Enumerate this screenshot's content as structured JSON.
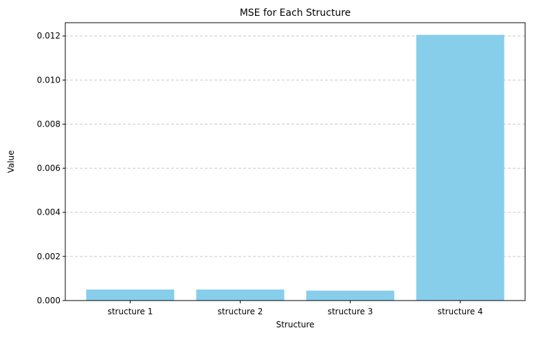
{
  "chart_data": {
    "type": "bar",
    "title": "MSE for Each Structure",
    "xlabel": "Structure",
    "ylabel": "Value",
    "categories": [
      "structure 1",
      "structure 2",
      "structure 3",
      "structure 4"
    ],
    "values": [
      0.0005,
      0.0005,
      0.00045,
      0.01205
    ],
    "ylim": [
      0,
      0.0126
    ],
    "yticks": [
      0.0,
      0.002,
      0.004,
      0.006,
      0.008,
      0.01,
      0.012
    ],
    "ytick_labels": [
      "0.000",
      "0.002",
      "0.004",
      "0.006",
      "0.008",
      "0.010",
      "0.012"
    ],
    "grid": "y-dashed",
    "bar_color": "#87CEEB",
    "grid_color": "#c8c8c8"
  }
}
